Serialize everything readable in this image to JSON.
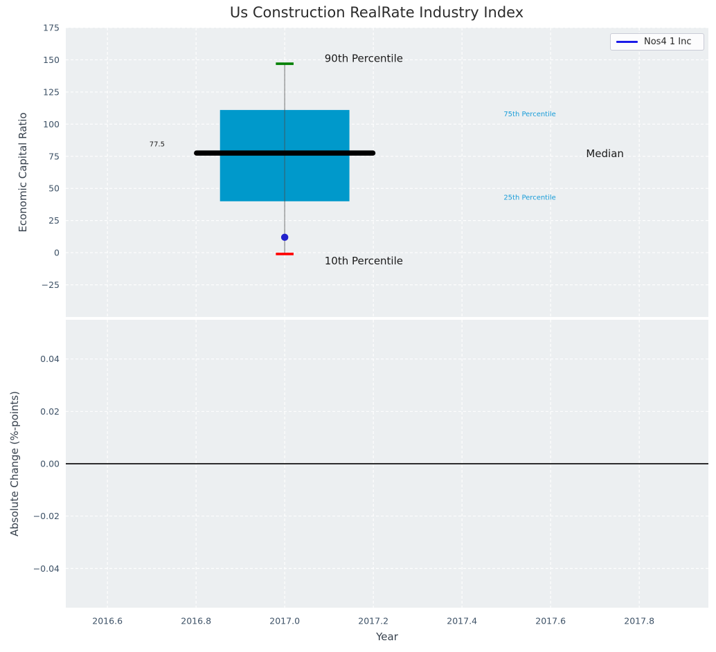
{
  "chart_data": {
    "type": "boxplot",
    "title": "Us Construction RealRate Industry Index",
    "xlabel": "Year",
    "x": {
      "lim": [
        2016.506,
        2017.956
      ],
      "ticks": [
        {
          "v": 2016.6,
          "label": "2016.6"
        },
        {
          "v": 2016.8,
          "label": "2016.8"
        },
        {
          "v": 2017.0,
          "label": "2017.0"
        },
        {
          "v": 2017.2,
          "label": "2017.2"
        },
        {
          "v": 2017.4,
          "label": "2017.4"
        },
        {
          "v": 2017.6,
          "label": "2017.6"
        },
        {
          "v": 2017.8,
          "label": "2017.8"
        }
      ]
    },
    "top_panel": {
      "ylabel": "Economic Capital Ratio",
      "ylim": [
        -50,
        175
      ],
      "yticks": [
        {
          "v": 175,
          "label": "175"
        },
        {
          "v": 150,
          "label": "150"
        },
        {
          "v": 125,
          "label": "125"
        },
        {
          "v": 100,
          "label": "100"
        },
        {
          "v": 75,
          "label": "75"
        },
        {
          "v": 50,
          "label": "50"
        },
        {
          "v": 25,
          "label": "25"
        },
        {
          "v": 0,
          "label": "0"
        },
        {
          "v": -25,
          "label": "−25"
        }
      ],
      "box": {
        "x": 2017.0,
        "p90": 147,
        "p75": 111,
        "median": 77.5,
        "p25": 40,
        "p10": -1,
        "box_halfwidth": 0.146,
        "median_halfwidth": 0.199,
        "cap_halfwidth": 0.02,
        "company_point": {
          "name": "Nos4 1 Inc",
          "x": 2017.0,
          "y": 12
        }
      },
      "annotations": [
        {
          "text": "90th Percentile",
          "x": 2017.09,
          "y": 151,
          "color": "#1a1a1a",
          "size": 15,
          "anchor": "start"
        },
        {
          "text": "10th Percentile",
          "x": 2017.09,
          "y": -6.5,
          "color": "#1a1a1a",
          "size": 15,
          "anchor": "start"
        },
        {
          "text": "75th Percentile",
          "x": 2017.494,
          "y": 107.5,
          "color": "#189cd8",
          "size": 10,
          "anchor": "start"
        },
        {
          "text": "25th Percentile",
          "x": 2017.494,
          "y": 42.5,
          "color": "#189cd8",
          "size": 10,
          "anchor": "start"
        },
        {
          "text": "Median",
          "x": 2017.68,
          "y": 77,
          "color": "#1a1a1a",
          "size": 15,
          "anchor": "start"
        },
        {
          "text": "77.5",
          "x": 2016.712,
          "y": 84,
          "color": "#1a1a1a",
          "size": 10,
          "anchor": "middle"
        }
      ]
    },
    "bottom_panel": {
      "ylabel": "Absolute Change (%-points)",
      "ylim": [
        -0.055,
        0.055
      ],
      "yticks": [
        {
          "v": 0.04,
          "label": "0.04"
        },
        {
          "v": 0.02,
          "label": "0.02"
        },
        {
          "v": 0.0,
          "label": "0.00"
        },
        {
          "v": -0.02,
          "label": "−0.02"
        },
        {
          "v": -0.04,
          "label": "−0.04"
        }
      ],
      "zero_line": 0.0
    },
    "legend": {
      "label": "Nos4 1 Inc",
      "position": "upper right"
    },
    "grid": true
  },
  "colors": {
    "panel_bg": "#eceff1",
    "grid": "#ffffff",
    "tick_label": "#3d5166",
    "box_fill": "#0099cb",
    "median_line": "#000000",
    "whisker": "#4a4a4a",
    "cap_90": "#008000",
    "cap_10": "#fe0000",
    "company_point": "#2222cc",
    "legend_line": "#1a1ae8",
    "zero_line": "#111111"
  }
}
